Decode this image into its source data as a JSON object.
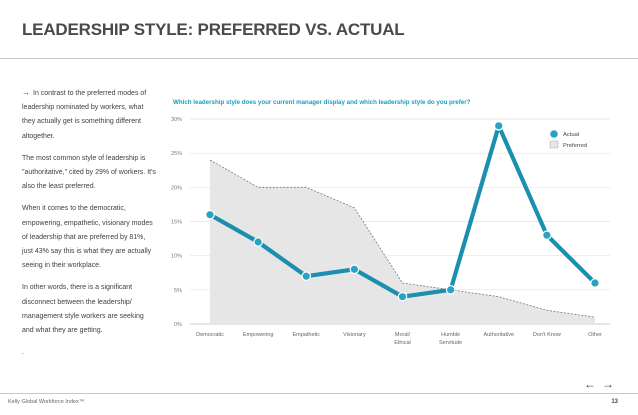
{
  "header": {
    "title": "LEADERSHIP STYLE: PREFERRED VS. ACTUAL"
  },
  "sidebar": {
    "arrow": "→",
    "paragraphs": [
      "In contrast to the preferred modes of leadership nominated by workers, what they actually get is something different altogether.",
      "The most common style of leadership is \"authoritative,\" cited by 29% of workers. It's also the least preferred.",
      "When it comes to the democratic, empowering, empathetic, visionary modes of leadership that are preferred by 81%, just 43% say this is what they are actually seeing in their workplace.",
      "In other words, there is a significant disconnect between the leadership/ management style workers are seeking and what they are getting.",
      "."
    ]
  },
  "colors": {
    "actual": "#1b8fae",
    "preferred_fill": "#e6e6e6",
    "preferred_line": "#7a7a7a",
    "question": "#1aa0bc"
  },
  "chart_data": {
    "type": "line",
    "title": "Which leadership style does your current manager display and which leadership style do you prefer?",
    "categories": [
      "Democratic",
      "Empowering",
      "Empathetic",
      "Visionary",
      "Moral/\nEthical",
      "Humble\nServitude",
      "Authoritative",
      "Don't Know",
      "Other"
    ],
    "series": [
      {
        "name": "Actual",
        "type": "line",
        "values": [
          16,
          12,
          7,
          8,
          4,
          5,
          29,
          13,
          6
        ]
      },
      {
        "name": "Preferred",
        "type": "area",
        "values": [
          24,
          20,
          20,
          17,
          6,
          5,
          4,
          2,
          1
        ]
      }
    ],
    "yticks": [
      "0%",
      "5%",
      "10%",
      "15%",
      "20%",
      "25%",
      "30%"
    ],
    "ylim": [
      0,
      30
    ],
    "xlabel": "",
    "ylabel": "",
    "grid": true,
    "legend_position": "top-right"
  },
  "nav": {
    "prev": "←",
    "next": "→"
  },
  "footer": {
    "text": "Kelly Global Workforce Index™",
    "page": "13"
  }
}
